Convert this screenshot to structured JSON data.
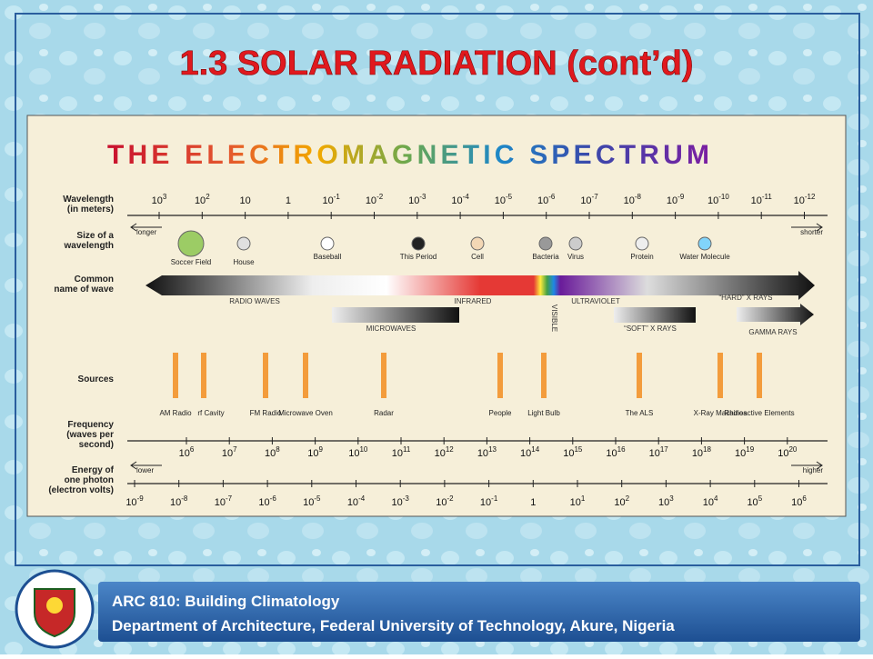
{
  "slide": {
    "title": "1.3 SOLAR RADIATION",
    "title_suffix": "(cont’d)"
  },
  "diagram": {
    "title_words": [
      "THE",
      "ELECTROMAGNETIC",
      "SPECTRUM"
    ],
    "row_labels": [
      [
        "Wavelength",
        "(in meters)"
      ],
      [
        "Size of a",
        "wavelength"
      ],
      [
        "Common",
        "name of wave"
      ],
      [
        "Sources"
      ],
      [
        "Frequency",
        "(waves per",
        "second)"
      ],
      [
        "Energy of",
        "one photon",
        "(electron volts)"
      ]
    ],
    "wavelength_ticks": [
      {
        "base": "10",
        "exp": "3"
      },
      {
        "base": "10",
        "exp": "2"
      },
      {
        "base": "10"
      },
      {
        "base": "1"
      },
      {
        "base": "10",
        "exp": "-1"
      },
      {
        "base": "10",
        "exp": "-2"
      },
      {
        "base": "10",
        "exp": "-3"
      },
      {
        "base": "10",
        "exp": "-4"
      },
      {
        "base": "10",
        "exp": "-5"
      },
      {
        "base": "10",
        "exp": "-6"
      },
      {
        "base": "10",
        "exp": "-7"
      },
      {
        "base": "10",
        "exp": "-8"
      },
      {
        "base": "10",
        "exp": "-9"
      },
      {
        "base": "10",
        "exp": "-10"
      },
      {
        "base": "10",
        "exp": "-11"
      },
      {
        "base": "10",
        "exp": "-12"
      }
    ],
    "frequency_ticks": [
      {
        "base": "10",
        "exp": "6"
      },
      {
        "base": "10",
        "exp": "7"
      },
      {
        "base": "10",
        "exp": "8"
      },
      {
        "base": "10",
        "exp": "9"
      },
      {
        "base": "10",
        "exp": "10"
      },
      {
        "base": "10",
        "exp": "11"
      },
      {
        "base": "10",
        "exp": "12"
      },
      {
        "base": "10",
        "exp": "13"
      },
      {
        "base": "10",
        "exp": "14"
      },
      {
        "base": "10",
        "exp": "15"
      },
      {
        "base": "10",
        "exp": "16"
      },
      {
        "base": "10",
        "exp": "17"
      },
      {
        "base": "10",
        "exp": "18"
      },
      {
        "base": "10",
        "exp": "19"
      },
      {
        "base": "10",
        "exp": "20"
      }
    ],
    "energy_ticks": [
      {
        "base": "10",
        "exp": "-9"
      },
      {
        "base": "10",
        "exp": "-8"
      },
      {
        "base": "10",
        "exp": "-7"
      },
      {
        "base": "10",
        "exp": "-6"
      },
      {
        "base": "10",
        "exp": "-5"
      },
      {
        "base": "10",
        "exp": "-4"
      },
      {
        "base": "10",
        "exp": "-3"
      },
      {
        "base": "10",
        "exp": "-2"
      },
      {
        "base": "10",
        "exp": "-1"
      },
      {
        "base": "1"
      },
      {
        "base": "10",
        "exp": "1"
      },
      {
        "base": "10",
        "exp": "2"
      },
      {
        "base": "10",
        "exp": "3"
      },
      {
        "base": "10",
        "exp": "4"
      },
      {
        "base": "10",
        "exp": "5"
      },
      {
        "base": "10",
        "exp": "6"
      }
    ],
    "wavelength_ends": [
      "longer",
      "shorter"
    ],
    "energy_ends": [
      "lower",
      "higher"
    ],
    "sizes": [
      "Soccer Field",
      "House",
      "Baseball",
      "This Period",
      "Cell",
      "Bacteria",
      "Virus",
      "Protein",
      "Water Molecule"
    ],
    "waves": [
      "RADIO WAVES",
      "INFRARED",
      "VISIBLE",
      "ULTRAVIOLET",
      "“HARD” X RAYS",
      "MICROWAVES",
      "“SOFT” X RAYS",
      "GAMMA RAYS"
    ],
    "sources": [
      "AM Radio",
      "rf Cavity",
      "FM Radio",
      "Microwave Oven",
      "Radar",
      "People",
      "Light Bulb",
      "The ALS",
      "X-Ray Machines",
      "Radioactive Elements"
    ]
  },
  "footer": {
    "course": "ARC 810: Building Climatology",
    "department": "Department of Architecture, Federal University of Technology, Akure, Nigeria"
  }
}
